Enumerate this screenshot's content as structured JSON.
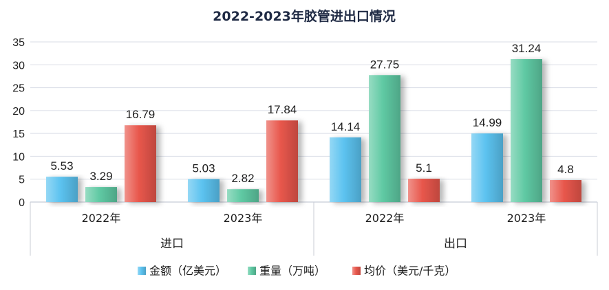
{
  "chart_data": {
    "type": "bar",
    "title": "2022-2023年胶管进出口情况",
    "groups": [
      {
        "label": "进口",
        "categories": [
          "2022年",
          "2023年"
        ]
      },
      {
        "label": "出口",
        "categories": [
          "2022年",
          "2023年"
        ]
      }
    ],
    "series": [
      {
        "name": "金额（亿美元）",
        "color": "#5cc3f0",
        "values": [
          5.53,
          5.03,
          14.14,
          14.99
        ],
        "labels": [
          "5.53",
          "5.03",
          "14.14",
          "14.99"
        ]
      },
      {
        "name": "重量（万吨）",
        "color": "#5fc9a3",
        "values": [
          3.29,
          2.82,
          27.75,
          31.24
        ],
        "labels": [
          "3.29",
          "2.82",
          "27.75",
          "31.24"
        ]
      },
      {
        "name": "均价（美元/千克）",
        "color": "#e8574c",
        "values": [
          16.79,
          17.84,
          5.1,
          4.8
        ],
        "labels": [
          "16.79",
          "17.84",
          "5.1",
          "4.8"
        ]
      }
    ],
    "ylim": [
      0,
      35
    ],
    "yticks": [
      "0",
      "5",
      "10",
      "15",
      "20",
      "25",
      "30",
      "35"
    ],
    "grid": true,
    "legend": "bottom"
  }
}
